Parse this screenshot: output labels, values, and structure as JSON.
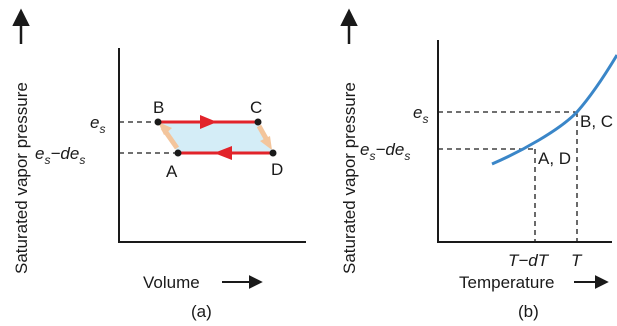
{
  "panel_a": {
    "caption": "(a)",
    "ylabel": "Saturated vapor pressure",
    "xlabel": "Volume",
    "level_high_base": "e",
    "level_high_sub": "s",
    "level_low_base1": "e",
    "level_low_sub1": "s",
    "level_low_mid": "−de",
    "level_low_sub2": "s",
    "points": {
      "A": "A",
      "B": "B",
      "C": "C",
      "D": "D"
    },
    "colors": {
      "cycle_line": "#e2232a",
      "fill": "#d4edf7",
      "arrow_side": "#f3c59c"
    }
  },
  "panel_b": {
    "caption": "(b)",
    "ylabel": "Saturated vapor pressure",
    "xlabel": "Temperature",
    "level_high_base": "e",
    "level_high_sub": "s",
    "level_low_base1": "e",
    "level_low_sub1": "s",
    "level_low_mid": "−de",
    "level_low_sub2": "s",
    "tick_low": "T−dT",
    "tick_high": "T",
    "label_upper": "B, C",
    "label_lower": "A, D",
    "colors": {
      "curve": "#3a86c8"
    }
  }
}
